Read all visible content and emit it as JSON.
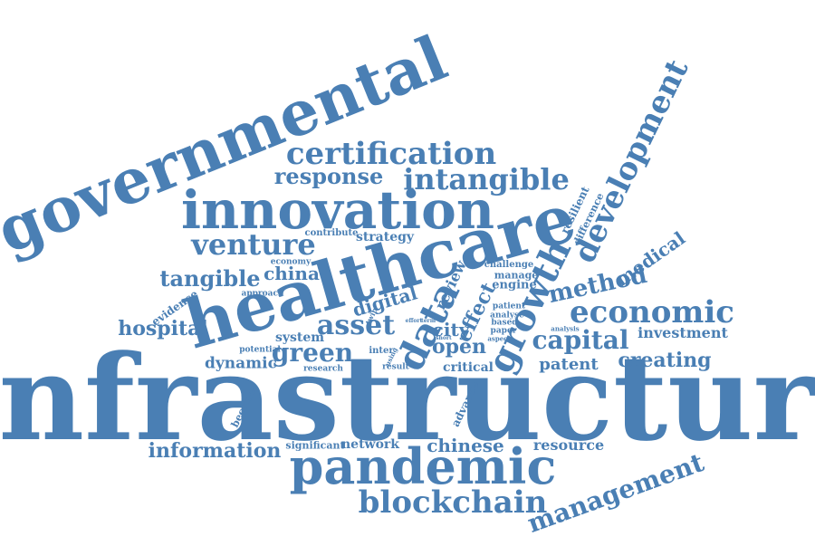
{
  "color": "#4a7fb4",
  "words": [
    {
      "id": "infrastructure",
      "text": "infrastructure"
    },
    {
      "id": "governmental",
      "text": "governmental"
    },
    {
      "id": "healthcare",
      "text": "healthcare"
    },
    {
      "id": "innovation",
      "text": "innovation"
    },
    {
      "id": "pandemic",
      "text": "pandemic"
    },
    {
      "id": "development",
      "text": "development"
    },
    {
      "id": "growth",
      "text": "growth"
    },
    {
      "id": "data",
      "text": "data"
    },
    {
      "id": "blockchain",
      "text": "blockchain"
    },
    {
      "id": "economic",
      "text": "economic"
    },
    {
      "id": "management",
      "text": "management"
    },
    {
      "id": "certification",
      "text": "certification"
    },
    {
      "id": "intangible",
      "text": "intangible"
    },
    {
      "id": "venture",
      "text": "venture"
    },
    {
      "id": "response",
      "text": "response"
    },
    {
      "id": "capital",
      "text": "capital"
    },
    {
      "id": "asset",
      "text": "asset"
    },
    {
      "id": "method",
      "text": "method"
    },
    {
      "id": "green",
      "text": "green"
    },
    {
      "id": "tangible",
      "text": "tangible"
    },
    {
      "id": "hospital",
      "text": "hospital"
    },
    {
      "id": "information",
      "text": "information"
    },
    {
      "id": "creating",
      "text": "creating"
    },
    {
      "id": "open",
      "text": "open"
    },
    {
      "id": "medical",
      "text": "medical"
    },
    {
      "id": "effect",
      "text": "effect"
    },
    {
      "id": "china",
      "text": "china"
    },
    {
      "id": "digital",
      "text": "digital"
    },
    {
      "id": "chinese",
      "text": "chinese"
    },
    {
      "id": "patent",
      "text": "patent"
    },
    {
      "id": "dynamic",
      "text": "dynamic"
    },
    {
      "id": "investment",
      "text": "investment"
    },
    {
      "id": "resource",
      "text": "resource"
    },
    {
      "id": "city",
      "text": "city"
    },
    {
      "id": "network",
      "text": "network"
    },
    {
      "id": "review",
      "text": "review"
    },
    {
      "id": "strategy",
      "text": "strategy"
    },
    {
      "id": "critical",
      "text": "critical"
    },
    {
      "id": "system",
      "text": "system"
    },
    {
      "id": "engine",
      "text": "engine"
    },
    {
      "id": "resilient",
      "text": "resilient"
    },
    {
      "id": "difference",
      "text": "difference"
    },
    {
      "id": "evidence",
      "text": "evidence"
    },
    {
      "id": "become",
      "text": "become"
    },
    {
      "id": "advance",
      "text": "advance"
    },
    {
      "id": "significant",
      "text": "significant"
    },
    {
      "id": "contribute",
      "text": "contribute"
    },
    {
      "id": "manage",
      "text": "manage"
    },
    {
      "id": "challenge",
      "text": "challenge"
    },
    {
      "id": "economy",
      "text": "economy"
    },
    {
      "id": "approach",
      "text": "approach"
    },
    {
      "id": "potential",
      "text": "potential"
    },
    {
      "id": "research",
      "text": "research"
    },
    {
      "id": "patient",
      "text": "patient"
    },
    {
      "id": "analyse",
      "text": "analyse"
    },
    {
      "id": "based",
      "text": "based"
    },
    {
      "id": "paper",
      "text": "paper"
    },
    {
      "id": "aspect",
      "text": "aspect"
    },
    {
      "id": "analysis",
      "text": "analysis"
    },
    {
      "id": "twin",
      "text": "twin"
    },
    {
      "id": "inter",
      "text": "inter"
    },
    {
      "id": "result",
      "text": "result"
    },
    {
      "id": "effort",
      "text": "effort"
    },
    {
      "id": "term",
      "text": "term"
    },
    {
      "id": "short",
      "text": "short"
    },
    {
      "id": "using",
      "text": "using"
    }
  ]
}
